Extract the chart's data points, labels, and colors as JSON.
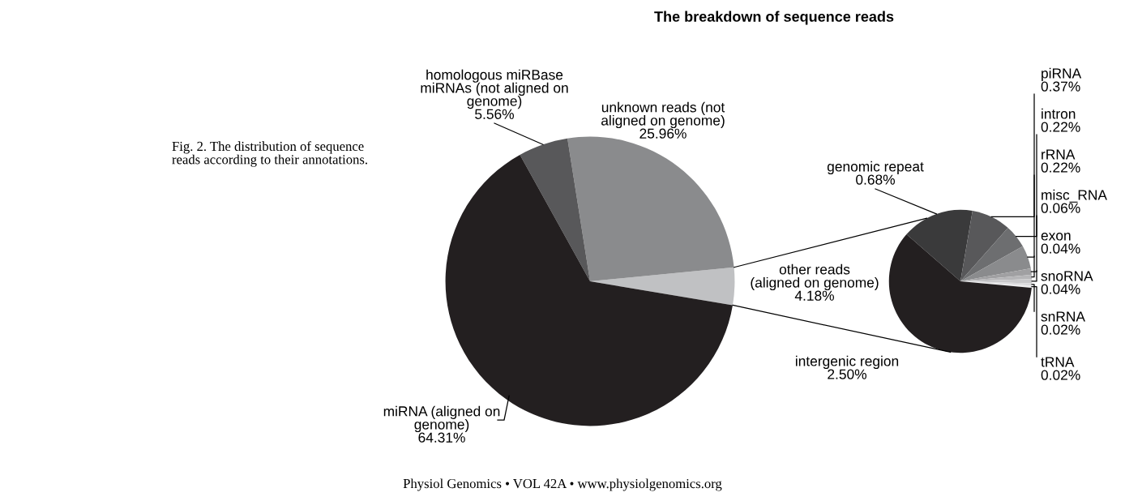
{
  "chart_data": [
    {
      "type": "pie",
      "title": "The breakdown of sequence reads",
      "categories": [
        "other reads\n(aligned on genome)",
        "unknown reads (not\naligned on genome)",
        "homologous miRBase\nmiRNAs (not aligned on\ngenome)",
        "miRNA (aligned on\ngenome)"
      ],
      "values": [
        4.18,
        25.96,
        5.56,
        64.31
      ],
      "value_labels": [
        "4.18%",
        "25.96%",
        "5.56%",
        "64.31%"
      ],
      "colors": [
        "#c0c1c3",
        "#8a8b8d",
        "#58585a",
        "#231f20"
      ],
      "annotations": [
        "Fig. 2. The distribution of sequence\nreads according to their annotations.",
        "Physiol Genomics • VOL 42A • www.physiolgenomics.org"
      ]
    },
    {
      "type": "pie",
      "categories": [
        "genomic repeat",
        "piRNA",
        "intron",
        "rRNA",
        "misc_RNA",
        "exon",
        "snoRNA",
        "snRNA",
        "tRNA",
        "intergenic region"
      ],
      "values": [
        0.68,
        0.37,
        0.22,
        0.22,
        0.06,
        0.04,
        0.04,
        0.02,
        0.02,
        2.5
      ],
      "value_labels": [
        "0.68%",
        "0.37%",
        "0.22%",
        "0.22%",
        "0.06%",
        "0.04%",
        "0.04%",
        "0.02%",
        "0.02%",
        "2.50%"
      ],
      "colors": [
        "#3a3a3b",
        "#58585a",
        "#6d6e70",
        "#8a8b8d",
        "#a0a0a2",
        "#b5b5b7",
        "#c8c8ca",
        "#dadadc",
        "#ececed",
        "#231f20"
      ]
    }
  ]
}
